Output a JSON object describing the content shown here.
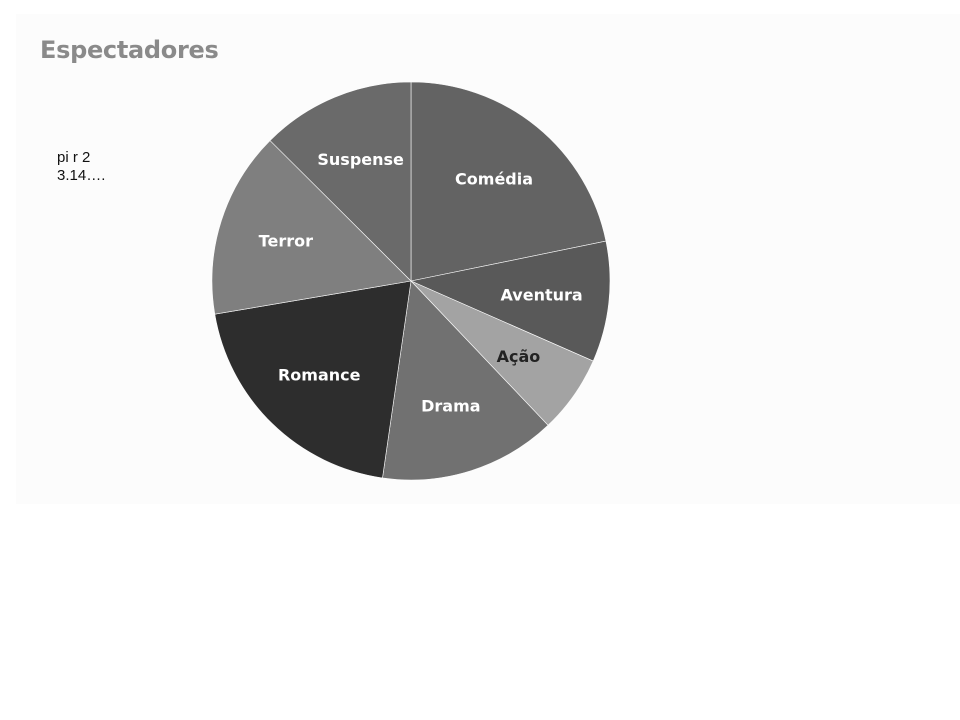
{
  "note": {
    "line1": "pi r 2",
    "line2": "3.14…."
  },
  "chart_data": {
    "type": "pie",
    "title": "Espectadores",
    "start_angle_deg": 0,
    "slices": [
      {
        "label": "Comédia",
        "value": 20.0,
        "color": "#636363",
        "label_color": "#ffffff"
      },
      {
        "label": "Aventura",
        "value": 9.0,
        "color": "#595959",
        "label_color": "#ffffff"
      },
      {
        "label": "Ação",
        "value": 5.8,
        "color": "#a3a3a3",
        "label_color": "#222222"
      },
      {
        "label": "Drama",
        "value": 13.2,
        "color": "#717171",
        "label_color": "#ffffff"
      },
      {
        "label": "Romance",
        "value": 18.4,
        "color": "#2d2d2d",
        "label_color": "#ffffff"
      },
      {
        "label": "Terror",
        "value": 13.9,
        "color": "#7f7f7f",
        "label_color": "#ffffff"
      },
      {
        "label": "Suspense",
        "value": 11.5,
        "color": "#6a6a6a",
        "label_color": "#ffffff"
      }
    ]
  }
}
